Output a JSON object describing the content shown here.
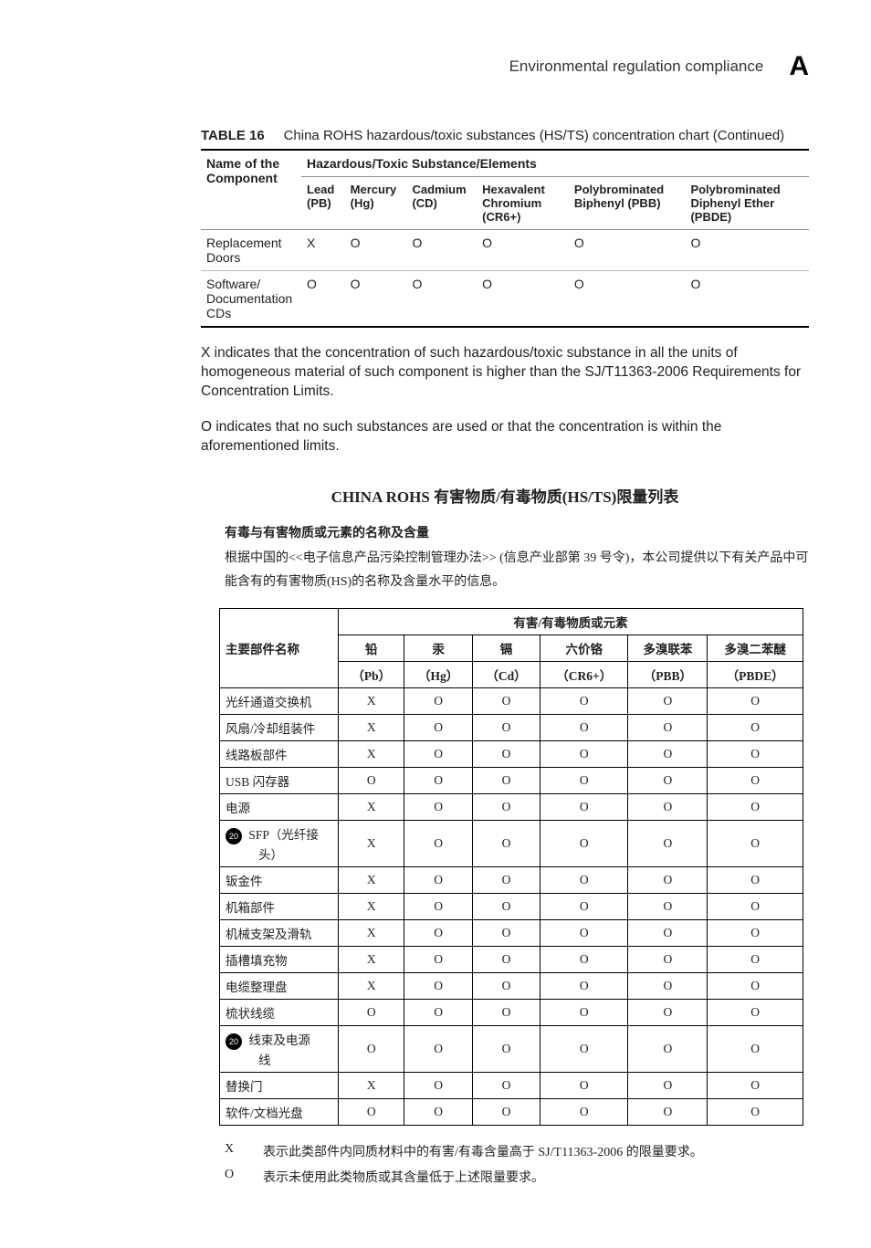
{
  "header": {
    "title": "Environmental regulation compliance",
    "appendix": "A"
  },
  "table16": {
    "label": "TABLE 16",
    "caption": "China ROHS hazardous/toxic substances (HS/TS) concentration chart (Continued)",
    "col_name": "Name of the Component",
    "col_group": "Hazardous/Toxic Substance/Elements",
    "sub_columns": [
      "Lead (PB)",
      "Mercury (Hg)",
      "Cadmium (CD)",
      "Hexavalent Chromium (CR6+)",
      "Polybrominated Biphenyl (PBB)",
      "Polybrominated Diphenyl Ether (PBDE)"
    ],
    "rows": [
      {
        "name": "Replacement Doors",
        "vals": [
          "X",
          "O",
          "O",
          "O",
          "O",
          "O"
        ]
      },
      {
        "name": "Software/ Documentation CDs",
        "vals": [
          "O",
          "O",
          "O",
          "O",
          "O",
          "O"
        ]
      }
    ]
  },
  "para_x": "X indicates that the concentration of such hazardous/toxic substance in all the units of homogeneous material of such component is higher than the SJ/T11363-2006 Requirements for Concentration Limits.",
  "para_o": "O indicates that no such substances are used or that the concentration is within the aforementioned limits.",
  "cn": {
    "title": "CHINA ROHS 有害物质/有毒物质(HS/TS)限量列表",
    "subheading": "有毒与有害物质或元素的名称及含量",
    "intro": "根据中国的<<电子信息产品污染控制管理办法>> (信息产业部第 39 号令)，本公司提供以下有关产品中可能含有的有害物质(HS)的名称及含量水平的信息。",
    "col_name": "主要部件名称",
    "col_group": "有害/有毒物质或元素",
    "sub_columns_top": [
      "铅",
      "汞",
      "镉",
      "六价铬",
      "多溴联苯",
      "多溴二苯醚"
    ],
    "sub_columns_bot": [
      "（Pb）",
      "（Hg）",
      "（Cd）",
      "（CR6+）",
      "（PBB）",
      "（PBDE）"
    ],
    "rows": [
      {
        "name": "光纤通道交换机",
        "icon": false,
        "vals": [
          "X",
          "O",
          "O",
          "O",
          "O",
          "O"
        ]
      },
      {
        "name": "风扇/冷却组装件",
        "icon": false,
        "vals": [
          "X",
          "O",
          "O",
          "O",
          "O",
          "O"
        ]
      },
      {
        "name": "线路板部件",
        "icon": false,
        "vals": [
          "X",
          "O",
          "O",
          "O",
          "O",
          "O"
        ]
      },
      {
        "name": "USB 闪存器",
        "icon": false,
        "vals": [
          "O",
          "O",
          "O",
          "O",
          "O",
          "O"
        ]
      },
      {
        "name": "电源",
        "icon": false,
        "vals": [
          "X",
          "O",
          "O",
          "O",
          "O",
          "O"
        ]
      },
      {
        "name": "SFP（光纤接头）",
        "icon": true,
        "multiline": true,
        "vals": [
          "X",
          "O",
          "O",
          "O",
          "O",
          "O"
        ]
      },
      {
        "name": "钣金件",
        "icon": false,
        "vals": [
          "X",
          "O",
          "O",
          "O",
          "O",
          "O"
        ]
      },
      {
        "name": "机箱部件",
        "icon": false,
        "vals": [
          "X",
          "O",
          "O",
          "O",
          "O",
          "O"
        ]
      },
      {
        "name": "机械支架及滑轨",
        "icon": false,
        "vals": [
          "X",
          "O",
          "O",
          "O",
          "O",
          "O"
        ]
      },
      {
        "name": "插槽填充物",
        "icon": false,
        "vals": [
          "X",
          "O",
          "O",
          "O",
          "O",
          "O"
        ]
      },
      {
        "name": "电缆整理盘",
        "icon": false,
        "vals": [
          "X",
          "O",
          "O",
          "O",
          "O",
          "O"
        ]
      },
      {
        "name": "梳状线缆",
        "icon": false,
        "vals": [
          "O",
          "O",
          "O",
          "O",
          "O",
          "O"
        ]
      },
      {
        "name": "线束及电源线",
        "icon": true,
        "multiline": true,
        "vals": [
          "O",
          "O",
          "O",
          "O",
          "O",
          "O"
        ]
      },
      {
        "name": "替换门",
        "icon": false,
        "vals": [
          "X",
          "O",
          "O",
          "O",
          "O",
          "O"
        ]
      },
      {
        "name": "软件/文档光盘",
        "icon": false,
        "vals": [
          "O",
          "O",
          "O",
          "O",
          "O",
          "O"
        ]
      }
    ],
    "legend_x": {
      "sym": "X",
      "text": "表示此类部件内同质材料中的有害/有毒含量高于 SJ/T11363-2006 的限量要求。"
    },
    "legend_o": {
      "sym": "O",
      "text": "表示未使用此类物质或其含量低于上述限量要求。"
    }
  },
  "colors": {
    "text": "#222222",
    "border_strong": "#000000",
    "border_light": "#bbbbbb",
    "background": "#ffffff"
  }
}
